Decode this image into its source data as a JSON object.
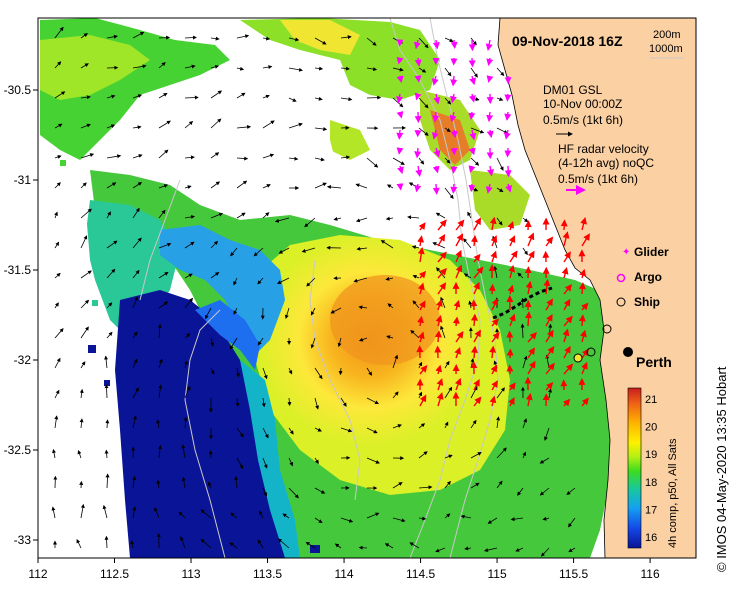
{
  "map": {
    "title": "09-Nov-2018 16Z",
    "depth_contours": [
      "200m",
      "1000m"
    ],
    "axes": {
      "lon_ticks": [
        "112",
        "112.5",
        "113",
        "113.5",
        "114",
        "114.5",
        "115",
        "115.5",
        "116"
      ],
      "lat_ticks": [
        "-30.5",
        "-31",
        "-31.5",
        "-32",
        "-32.5",
        "-33"
      ],
      "lon_range": [
        112.0,
        116.3
      ],
      "lat_range": [
        -33.1,
        -30.1
      ]
    },
    "model_legend": {
      "line1": "DM01 GSL",
      "line2": "10-Nov 00:00Z",
      "line3": "0.5m/s (1kt 6h)"
    },
    "radar_legend": {
      "line1": "HF radar velocity",
      "line2": "(4-12h avg) noQC",
      "line3": "0.5m/s (1kt 6h)"
    },
    "symbol_legend": [
      {
        "label": "Glider",
        "symbol": "glider",
        "color": "#ff00ff"
      },
      {
        "label": "Argo",
        "symbol": "argo",
        "color": "#ff00ff"
      },
      {
        "label": "Ship",
        "symbol": "ship",
        "color": "#000000"
      }
    ],
    "city": {
      "label": "Perth",
      "lon": 115.86,
      "lat": -31.95
    },
    "colorbar": {
      "ticks": [
        "21",
        "20",
        "19",
        "18",
        "17",
        "16"
      ],
      "caption": "4h comp, p50, All Sats",
      "min": 15.6,
      "max": 21.4
    },
    "credit": "©  IMOS 04-May-2020 13:35 Hobart",
    "colors": {
      "land": "#fbd0a3",
      "radar_arrow": "#ff0000",
      "radar_legend_arrow": "#ff00ff",
      "contour": "#c8c8c8"
    }
  }
}
